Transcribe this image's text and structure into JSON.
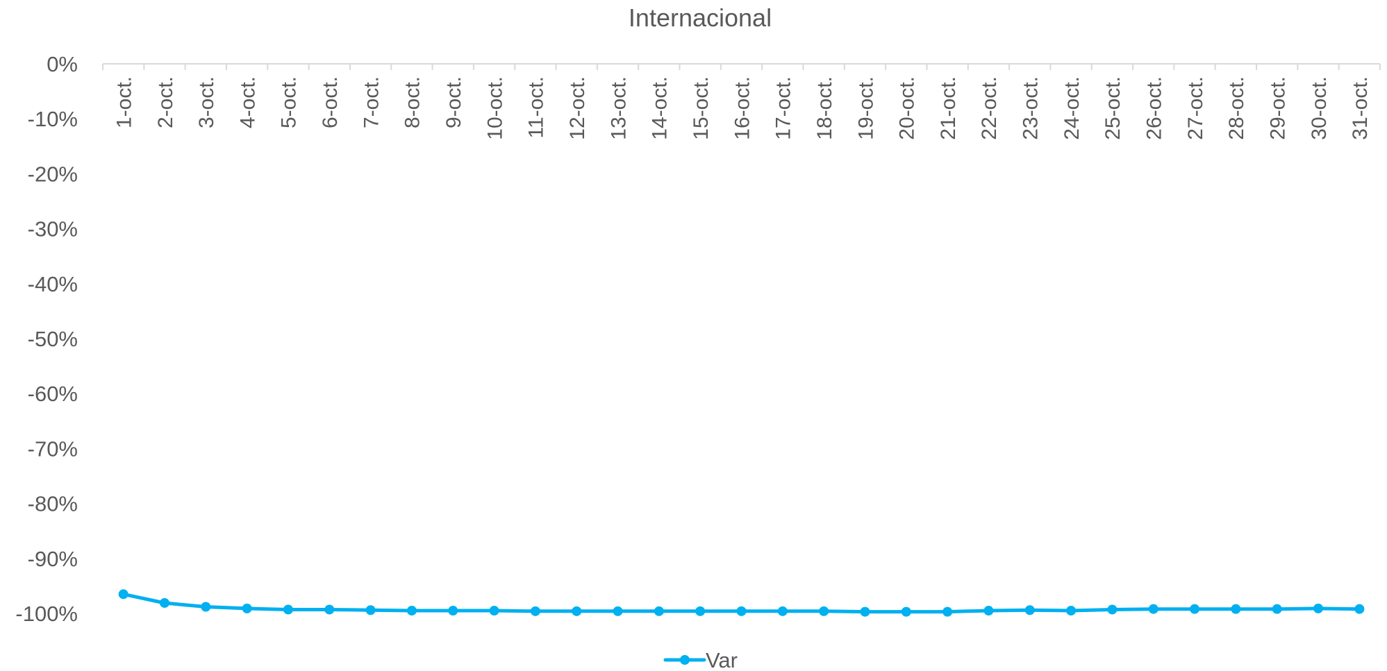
{
  "chart_data": {
    "type": "line",
    "title": "Internacional",
    "xlabel": "",
    "ylabel": "",
    "categories": [
      "1-oct.",
      "2-oct.",
      "3-oct.",
      "4-oct.",
      "5-oct.",
      "6-oct.",
      "7-oct.",
      "8-oct.",
      "9-oct.",
      "10-oct.",
      "11-oct.",
      "12-oct.",
      "13-oct.",
      "14-oct.",
      "15-oct.",
      "16-oct.",
      "17-oct.",
      "18-oct.",
      "19-oct.",
      "20-oct.",
      "21-oct.",
      "22-oct.",
      "23-oct.",
      "24-oct.",
      "25-oct.",
      "26-oct.",
      "27-oct.",
      "28-oct.",
      "29-oct.",
      "30-oct.",
      "31-oct."
    ],
    "series": [
      {
        "name": "Var",
        "color": "#00B0F0",
        "values": [
          -96.5,
          -98.1,
          -98.8,
          -99.1,
          -99.3,
          -99.3,
          -99.4,
          -99.5,
          -99.5,
          -99.5,
          -99.6,
          -99.6,
          -99.6,
          -99.6,
          -99.6,
          -99.6,
          -99.6,
          -99.6,
          -99.7,
          -99.7,
          -99.7,
          -99.5,
          -99.4,
          -99.5,
          -99.3,
          -99.2,
          -99.2,
          -99.2,
          -99.2,
          -99.1,
          -99.2
        ]
      }
    ],
    "ylim": [
      -100,
      0
    ],
    "yticks": [
      "0%",
      "-10%",
      "-20%",
      "-30%",
      "-40%",
      "-50%",
      "-60%",
      "-70%",
      "-80%",
      "-90%",
      "-100%"
    ],
    "grid": false,
    "legend": "bottom"
  }
}
